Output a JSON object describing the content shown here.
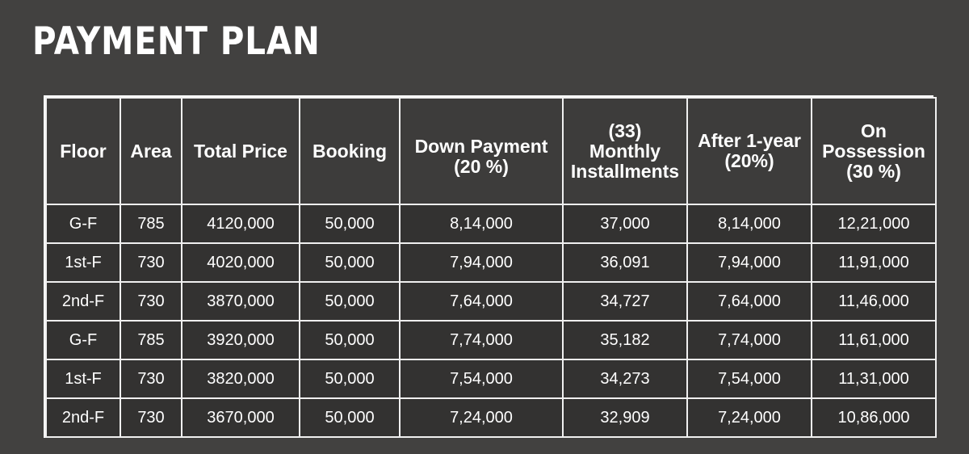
{
  "title": "PAYMENT PLAN",
  "columns": [
    {
      "lines": [
        "Floor"
      ]
    },
    {
      "lines": [
        "Area"
      ]
    },
    {
      "lines": [
        "Total Price"
      ]
    },
    {
      "lines": [
        "Booking"
      ]
    },
    {
      "lines": [
        "Down Payment",
        "(20 %)"
      ]
    },
    {
      "lines": [
        "(33)",
        "Monthly",
        "Installments"
      ]
    },
    {
      "lines": [
        "After 1-year",
        "(20%)"
      ]
    },
    {
      "lines": [
        "On",
        "Possession",
        "(30 %)"
      ]
    }
  ],
  "rows": [
    [
      "G-F",
      "785",
      "4120,000",
      "50,000",
      "8,14,000",
      "37,000",
      "8,14,000",
      "12,21,000"
    ],
    [
      "1st-F",
      "730",
      "4020,000",
      "50,000",
      "7,94,000",
      "36,091",
      "7,94,000",
      "11,91,000"
    ],
    [
      "2nd-F",
      "730",
      "3870,000",
      "50,000",
      "7,64,000",
      "34,727",
      "7,64,000",
      "11,46,000"
    ],
    [
      "G-F",
      "785",
      "3920,000",
      "50,000",
      "7,74,000",
      "35,182",
      "7,74,000",
      "11,61,000"
    ],
    [
      "1st-F",
      "730",
      "3820,000",
      "50,000",
      "7,54,000",
      "34,273",
      "7,54,000",
      "11,31,000"
    ],
    [
      "2nd-F",
      "730",
      "3670,000",
      "50,000",
      "7,24,000",
      "32,909",
      "7,24,000",
      "10,86,000"
    ]
  ]
}
